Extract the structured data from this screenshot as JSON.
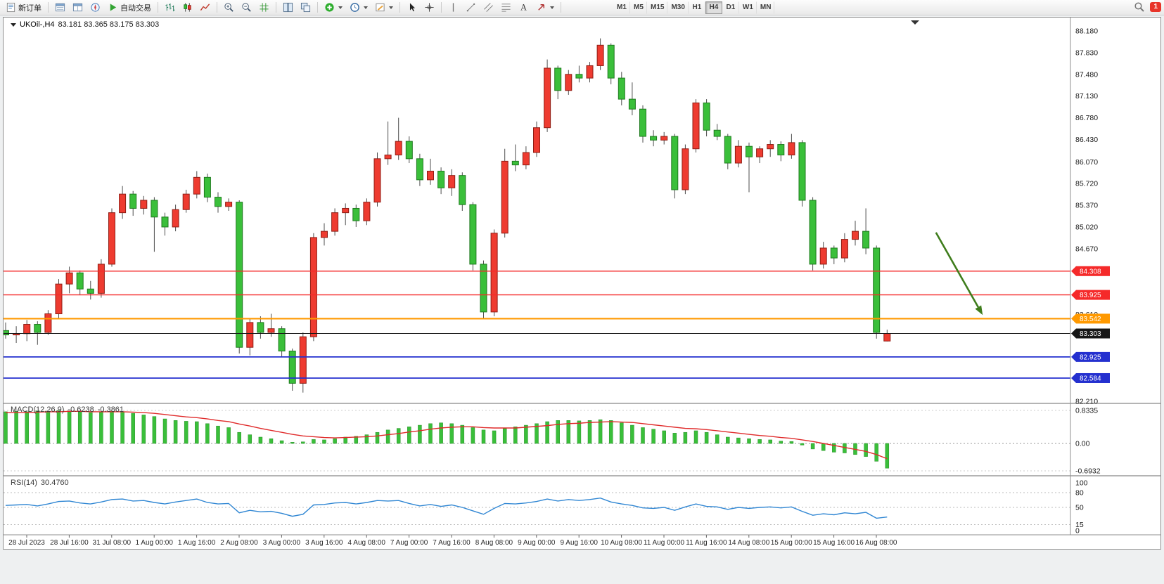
{
  "toolbar": {
    "new_order_label": "新订单",
    "auto_trading_label": "自动交易",
    "timeframes": [
      "M1",
      "M5",
      "M15",
      "M30",
      "H1",
      "H4",
      "D1",
      "W1",
      "MN"
    ],
    "active_timeframe": "H4",
    "notification_count": "1",
    "items": [
      {
        "t": "btn",
        "name": "new-order-button",
        "icon": "new-order",
        "label": "新订单"
      },
      {
        "t": "sep"
      },
      {
        "t": "btn",
        "name": "market-watch-button",
        "icon": "market-watch"
      },
      {
        "t": "btn",
        "name": "data-window-button",
        "icon": "data-window"
      },
      {
        "t": "btn",
        "name": "navigator-button",
        "icon": "navigator"
      },
      {
        "t": "btn",
        "name": "auto-trading-button",
        "icon": "play",
        "label": "自动交易"
      },
      {
        "t": "sep"
      },
      {
        "t": "btn",
        "name": "bar-chart-button",
        "icon": "bar-chart"
      },
      {
        "t": "btn",
        "name": "candle-chart-button",
        "icon": "candle-chart"
      },
      {
        "t": "btn",
        "name": "line-chart-button",
        "icon": "line-chart"
      },
      {
        "t": "sep"
      },
      {
        "t": "btn",
        "name": "zoom-in-button",
        "icon": "zoom-in"
      },
      {
        "t": "btn",
        "name": "zoom-out-button",
        "icon": "zoom-out"
      },
      {
        "t": "btn",
        "name": "grid-button",
        "icon": "grid"
      },
      {
        "t": "sep"
      },
      {
        "t": "btn",
        "name": "tile-windows-button",
        "icon": "tile"
      },
      {
        "t": "btn",
        "name": "cascade-windows-button",
        "icon": "cascade"
      },
      {
        "t": "sep"
      },
      {
        "t": "btn",
        "name": "indicators-button",
        "icon": "indicator-add",
        "dd": true
      },
      {
        "t": "btn",
        "name": "periods-button",
        "icon": "clock",
        "dd": true
      },
      {
        "t": "btn",
        "name": "templates-button",
        "icon": "template",
        "dd": true
      },
      {
        "t": "sep"
      },
      {
        "t": "btn",
        "name": "cursor-button",
        "icon": "cursor"
      },
      {
        "t": "btn",
        "name": "crosshair-button",
        "icon": "crosshair"
      },
      {
        "t": "sep"
      },
      {
        "t": "btn",
        "name": "vertical-line-button",
        "icon": "vline"
      },
      {
        "t": "btn",
        "name": "trendline-button",
        "icon": "trendline"
      },
      {
        "t": "btn",
        "name": "channel-button",
        "icon": "channel"
      },
      {
        "t": "btn",
        "name": "fibonacci-button",
        "icon": "fibonacci"
      },
      {
        "t": "btn",
        "name": "text-button",
        "icon": "text-a"
      },
      {
        "t": "btn",
        "name": "arrows-button",
        "icon": "arrow-tool",
        "dd": true
      },
      {
        "t": "sep"
      },
      {
        "t": "gap"
      },
      {
        "t": "tfs"
      }
    ]
  },
  "chart": {
    "title": "UKOil-,H4",
    "quote": "83.181 83.365 83.175 83.303",
    "price_axis_labels": [
      "88.180",
      "87.830",
      "87.480",
      "87.130",
      "86.780",
      "86.430",
      "86.070",
      "85.720",
      "85.370",
      "85.020",
      "84.670",
      "83.610",
      "82.210"
    ],
    "time_axis_labels": [
      "28 Jul 2023",
      "28 Jul 16:00",
      "31 Jul 08:00",
      "1 Aug 00:00",
      "1 Aug 16:00",
      "2 Aug 08:00",
      "3 Aug 00:00",
      "3 Aug 16:00",
      "4 Aug 08:00",
      "7 Aug 00:00",
      "7 Aug 16:00",
      "8 Aug 08:00",
      "9 Aug 00:00",
      "9 Aug 16:00",
      "10 Aug 08:00",
      "11 Aug 00:00",
      "11 Aug 16:00",
      "14 Aug 08:00",
      "15 Aug 00:00",
      "15 Aug 16:00",
      "16 Aug 08:00"
    ],
    "levels": [
      {
        "label": "84.308",
        "price": 84.308,
        "color": "#f52a2a",
        "width": 1.4
      },
      {
        "label": "83.925",
        "price": 83.925,
        "color": "#f52a2a",
        "width": 1.4
      },
      {
        "label": "83.542",
        "price": 83.542,
        "color": "#ff9900",
        "width": 2.2
      },
      {
        "label": "83.303",
        "price": 83.303,
        "color": "#161616",
        "width": 1
      },
      {
        "label": "82.925",
        "price": 82.925,
        "color": "#2430cf",
        "width": 1.8
      },
      {
        "label": "82.584",
        "price": 82.584,
        "color": "#2430cf",
        "width": 1.8
      }
    ]
  },
  "chart_data": {
    "type": "candlestick",
    "symbol": "UKOil-",
    "timeframe": "H4",
    "current_bar": {
      "open": 83.181,
      "high": 83.365,
      "low": 83.175,
      "close": 83.303
    },
    "y_range": [
      82.21,
      88.18
    ],
    "up_color": "#ee3b30",
    "down_color": "#3abf3a",
    "candles": [
      [
        83.35,
        83.48,
        83.22,
        83.28
      ],
      [
        83.28,
        83.42,
        83.15,
        83.3
      ],
      [
        83.3,
        83.52,
        83.18,
        83.45
      ],
      [
        83.45,
        83.5,
        83.12,
        83.32
      ],
      [
        83.32,
        83.68,
        83.28,
        83.62
      ],
      [
        83.62,
        84.18,
        83.55,
        84.1
      ],
      [
        84.1,
        84.38,
        83.95,
        84.28
      ],
      [
        84.28,
        84.32,
        83.92,
        84.02
      ],
      [
        84.02,
        84.15,
        83.85,
        83.95
      ],
      [
        83.95,
        84.5,
        83.88,
        84.42
      ],
      [
        84.42,
        85.32,
        84.38,
        85.25
      ],
      [
        85.25,
        85.68,
        85.15,
        85.55
      ],
      [
        85.55,
        85.6,
        85.2,
        85.32
      ],
      [
        85.32,
        85.52,
        85.22,
        85.45
      ],
      [
        85.45,
        85.5,
        84.62,
        85.18
      ],
      [
        85.18,
        85.25,
        84.88,
        85.02
      ],
      [
        85.02,
        85.38,
        84.95,
        85.3
      ],
      [
        85.3,
        85.62,
        85.25,
        85.55
      ],
      [
        85.55,
        85.92,
        85.48,
        85.82
      ],
      [
        85.82,
        85.88,
        85.42,
        85.5
      ],
      [
        85.5,
        85.58,
        85.25,
        85.35
      ],
      [
        85.35,
        85.48,
        85.28,
        85.42
      ],
      [
        85.42,
        85.45,
        82.98,
        83.08
      ],
      [
        83.08,
        83.55,
        82.95,
        83.48
      ],
      [
        83.48,
        83.58,
        83.22,
        83.32
      ],
      [
        83.32,
        83.62,
        83.25,
        83.38
      ],
      [
        83.38,
        83.42,
        82.92,
        83.02
      ],
      [
        83.02,
        83.06,
        82.38,
        82.5
      ],
      [
        82.5,
        83.32,
        82.35,
        83.25
      ],
      [
        83.25,
        84.92,
        83.18,
        84.85
      ],
      [
        84.85,
        85.08,
        84.72,
        84.95
      ],
      [
        84.95,
        85.32,
        84.88,
        85.25
      ],
      [
        85.25,
        85.4,
        85.05,
        85.32
      ],
      [
        85.32,
        85.38,
        85.02,
        85.12
      ],
      [
        85.12,
        85.48,
        85.05,
        85.42
      ],
      [
        85.42,
        86.22,
        85.35,
        86.12
      ],
      [
        86.12,
        86.72,
        86.02,
        86.18
      ],
      [
        86.18,
        86.78,
        86.1,
        86.4
      ],
      [
        86.4,
        86.48,
        86.05,
        86.12
      ],
      [
        86.12,
        86.2,
        85.68,
        85.78
      ],
      [
        85.78,
        86.12,
        85.7,
        85.92
      ],
      [
        85.92,
        85.98,
        85.55,
        85.65
      ],
      [
        85.65,
        85.95,
        85.52,
        85.85
      ],
      [
        85.85,
        85.9,
        85.28,
        85.38
      ],
      [
        85.38,
        85.42,
        84.32,
        84.42
      ],
      [
        84.42,
        84.48,
        83.55,
        83.65
      ],
      [
        83.65,
        84.98,
        83.58,
        84.92
      ],
      [
        84.92,
        86.28,
        84.85,
        86.08
      ],
      [
        86.08,
        86.35,
        85.92,
        86.02
      ],
      [
        86.02,
        86.32,
        85.95,
        86.22
      ],
      [
        86.22,
        86.72,
        86.15,
        86.62
      ],
      [
        86.62,
        87.72,
        86.55,
        87.58
      ],
      [
        87.58,
        87.62,
        87.08,
        87.22
      ],
      [
        87.22,
        87.55,
        87.15,
        87.48
      ],
      [
        87.48,
        87.62,
        87.35,
        87.42
      ],
      [
        87.42,
        87.68,
        87.35,
        87.62
      ],
      [
        87.62,
        88.06,
        87.55,
        87.95
      ],
      [
        87.95,
        87.98,
        87.32,
        87.42
      ],
      [
        87.42,
        87.52,
        86.98,
        87.08
      ],
      [
        87.08,
        87.35,
        86.82,
        86.92
      ],
      [
        86.92,
        86.98,
        86.38,
        86.48
      ],
      [
        86.48,
        86.58,
        86.32,
        86.42
      ],
      [
        86.42,
        86.55,
        86.35,
        86.48
      ],
      [
        86.48,
        86.52,
        85.48,
        85.62
      ],
      [
        85.62,
        86.35,
        85.55,
        86.28
      ],
      [
        86.28,
        87.08,
        86.22,
        87.02
      ],
      [
        87.02,
        87.08,
        86.48,
        86.58
      ],
      [
        86.58,
        86.68,
        86.42,
        86.48
      ],
      [
        86.48,
        86.52,
        85.95,
        86.05
      ],
      [
        86.05,
        86.42,
        85.98,
        86.32
      ],
      [
        86.32,
        86.38,
        85.58,
        86.15
      ],
      [
        86.15,
        86.32,
        86.05,
        86.28
      ],
      [
        86.28,
        86.42,
        86.15,
        86.35
      ],
      [
        86.35,
        86.4,
        86.08,
        86.18
      ],
      [
        86.18,
        86.52,
        86.12,
        86.38
      ],
      [
        86.38,
        86.42,
        85.35,
        85.45
      ],
      [
        85.45,
        85.5,
        84.32,
        84.42
      ],
      [
        84.42,
        84.78,
        84.35,
        84.68
      ],
      [
        84.68,
        84.72,
        84.42,
        84.52
      ],
      [
        84.52,
        84.92,
        84.45,
        84.82
      ],
      [
        84.82,
        85.12,
        84.72,
        84.95
      ],
      [
        84.95,
        85.32,
        84.58,
        84.68
      ],
      [
        84.68,
        84.72,
        83.22,
        83.32
      ],
      [
        83.181,
        83.365,
        83.175,
        83.303
      ]
    ],
    "indicators": {
      "macd": {
        "label": "MACD(12,26,9)",
        "main_value": "-0.6238",
        "signal_value": "-0.3861",
        "axis_labels": [
          "0.8335",
          "0.00",
          "-0.6932"
        ],
        "y_max": 0.8335,
        "y_min": -0.6932,
        "hist_color": "#3abf3a",
        "signal_color": "#e02b2b",
        "histogram": [
          0.8,
          0.81,
          0.8,
          0.82,
          0.81,
          0.83,
          0.82,
          0.8,
          0.78,
          0.79,
          0.81,
          0.8,
          0.76,
          0.72,
          0.68,
          0.62,
          0.58,
          0.56,
          0.55,
          0.5,
          0.44,
          0.4,
          0.28,
          0.22,
          0.16,
          0.12,
          0.07,
          0.03,
          0.04,
          0.1,
          0.09,
          0.12,
          0.16,
          0.18,
          0.22,
          0.28,
          0.34,
          0.38,
          0.42,
          0.46,
          0.5,
          0.52,
          0.5,
          0.46,
          0.4,
          0.34,
          0.32,
          0.38,
          0.42,
          0.46,
          0.5,
          0.55,
          0.58,
          0.58,
          0.57,
          0.58,
          0.6,
          0.58,
          0.52,
          0.46,
          0.4,
          0.36,
          0.32,
          0.26,
          0.28,
          0.32,
          0.28,
          0.22,
          0.16,
          0.14,
          0.12,
          0.1,
          0.09,
          0.06,
          0.05,
          -0.04,
          -0.14,
          -0.18,
          -0.22,
          -0.24,
          -0.28,
          -0.33,
          -0.45,
          -0.6238
        ],
        "signal": [
          0.78,
          0.78,
          0.78,
          0.79,
          0.8,
          0.8,
          0.81,
          0.81,
          0.8,
          0.8,
          0.8,
          0.8,
          0.79,
          0.78,
          0.76,
          0.73,
          0.7,
          0.67,
          0.65,
          0.62,
          0.58,
          0.55,
          0.49,
          0.44,
          0.38,
          0.33,
          0.28,
          0.23,
          0.19,
          0.17,
          0.15,
          0.14,
          0.15,
          0.16,
          0.17,
          0.19,
          0.22,
          0.25,
          0.29,
          0.32,
          0.36,
          0.39,
          0.41,
          0.42,
          0.42,
          0.4,
          0.39,
          0.39,
          0.39,
          0.41,
          0.43,
          0.45,
          0.48,
          0.5,
          0.51,
          0.53,
          0.54,
          0.55,
          0.54,
          0.53,
          0.5,
          0.47,
          0.44,
          0.41,
          0.38,
          0.37,
          0.35,
          0.32,
          0.29,
          0.26,
          0.23,
          0.2,
          0.18,
          0.15,
          0.13,
          0.09,
          0.05,
          0.0,
          -0.05,
          -0.1,
          -0.15,
          -0.2,
          -0.28,
          -0.3861
        ]
      },
      "rsi": {
        "label": "RSI(14)",
        "value": "30.4760",
        "axis_labels": [
          "100",
          "80",
          "50",
          "15",
          "0"
        ],
        "levels": [
          80,
          50,
          15
        ],
        "line_color": "#2f86d3",
        "series": [
          54,
          55,
          56,
          53,
          57,
          62,
          63,
          59,
          57,
          61,
          66,
          67,
          63,
          64,
          60,
          57,
          61,
          64,
          67,
          60,
          57,
          58,
          39,
          44,
          41,
          42,
          38,
          32,
          36,
          55,
          56,
          59,
          60,
          57,
          60,
          64,
          63,
          64,
          58,
          53,
          56,
          52,
          55,
          50,
          43,
          36,
          48,
          58,
          57,
          59,
          62,
          67,
          63,
          66,
          64,
          66,
          69,
          61,
          57,
          54,
          49,
          48,
          50,
          44,
          51,
          57,
          52,
          51,
          46,
          50,
          48,
          50,
          51,
          49,
          51,
          42,
          34,
          37,
          35,
          39,
          37,
          40,
          28,
          30.48
        ]
      }
    },
    "annotations": [
      {
        "type": "arrow",
        "color": "#3f7d1c",
        "from": {
          "bar": 87.6,
          "price": 84.93
        },
        "to": {
          "bar": 92,
          "price": 83.6
        }
      }
    ]
  }
}
